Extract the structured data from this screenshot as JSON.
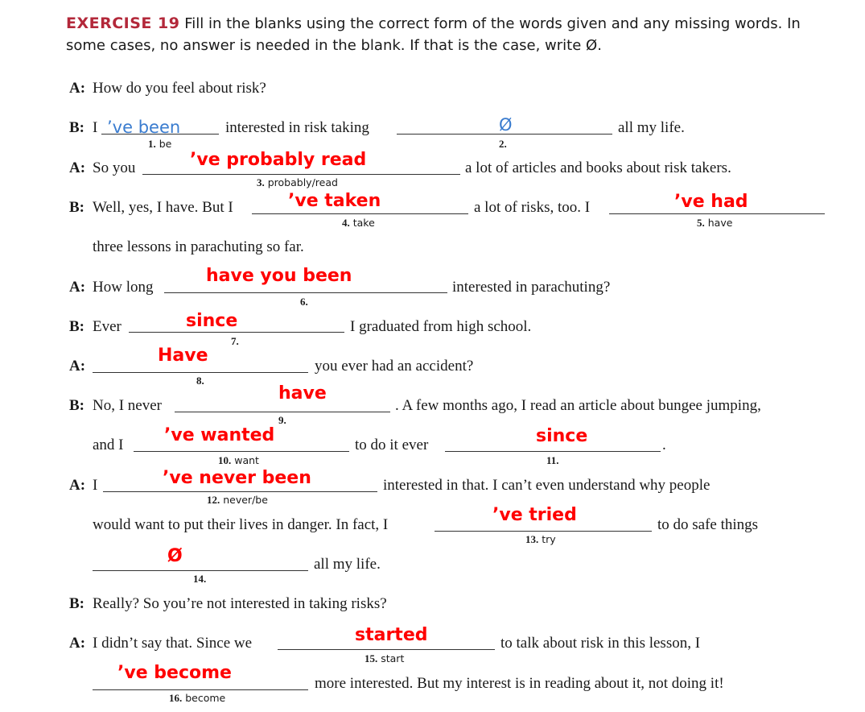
{
  "header": {
    "exercise": "EXERCISE 19",
    "instructions": "Fill in the blanks using the correct form of the words given and any missing words. In some cases, no answer is needed in the blank. If that is the case, write Ø."
  },
  "speakers": {
    "a": "A:",
    "b": "B:"
  },
  "lines": {
    "l1": "How do you feel about risk?",
    "l2a": "I",
    "l2b": "interested in risk taking",
    "l2c": "all my life.",
    "l3a": "So you",
    "l3b": "a lot of articles and books about risk takers.",
    "l4a": "Well, yes, I have. But I",
    "l4b": "a lot of risks, too. I",
    "l5": "three lessons in parachuting so far.",
    "l6a": "How long",
    "l6b": "interested in parachuting?",
    "l7a": "Ever",
    "l7b": "I graduated from high school.",
    "l8": "you ever had an accident?",
    "l9a": "No, I never",
    "l9b": ". A few months ago, I read an article about bungee jumping,",
    "l10a": "and I",
    "l10b": "to do it ever",
    "l10c": ".",
    "l11a": "I",
    "l11b": "interested in that. I can’t even understand why people",
    "l12a": "would want to put their lives in danger. In fact, I",
    "l12b": "to do safe things",
    "l13": "all my life.",
    "l14": "Really? So you’re not interested in taking risks?",
    "l15a": "I didn’t say that. Since we",
    "l15b": "to talk about risk in this lesson, I",
    "l16": "more interested. But my interest is in reading about it, not doing it!"
  },
  "blanks": [
    {
      "num": "1.",
      "word": "be",
      "answer": "’ve been"
    },
    {
      "num": "2.",
      "word": "",
      "answer": "Ø"
    },
    {
      "num": "3.",
      "word": "probably/read",
      "answer": "’ve probably read"
    },
    {
      "num": "4.",
      "word": "take",
      "answer": "’ve taken"
    },
    {
      "num": "5.",
      "word": "have",
      "answer": "’ve had"
    },
    {
      "num": "6.",
      "word": "",
      "answer": "have you been"
    },
    {
      "num": "7.",
      "word": "",
      "answer": "since"
    },
    {
      "num": "8.",
      "word": "",
      "answer": "Have"
    },
    {
      "num": "9.",
      "word": "",
      "answer": "have"
    },
    {
      "num": "10.",
      "word": "want",
      "answer": "’ve wanted"
    },
    {
      "num": "11.",
      "word": "",
      "answer": "since"
    },
    {
      "num": "12.",
      "word": "never/be",
      "answer": "’ve never been"
    },
    {
      "num": "13.",
      "word": "try",
      "answer": "’ve tried"
    },
    {
      "num": "14.",
      "word": "",
      "answer": "Ø"
    },
    {
      "num": "15.",
      "word": "start",
      "answer": "started"
    },
    {
      "num": "16.",
      "word": "become",
      "answer": "’ve become"
    }
  ],
  "colors": {
    "exercise_title": "#b3283a",
    "answers": "#ff0000",
    "handwriting": "#3a7ccf"
  }
}
